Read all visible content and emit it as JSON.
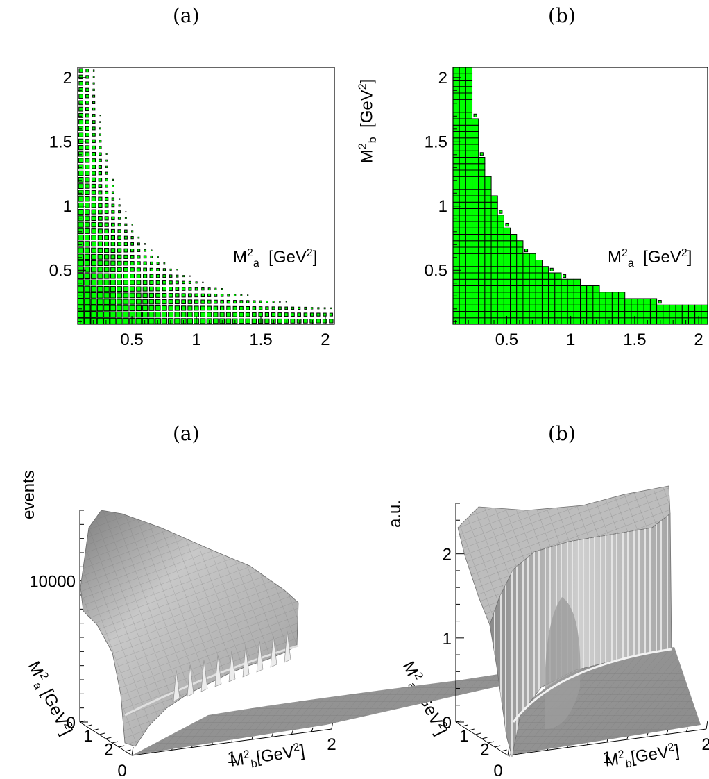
{
  "panels": [
    {
      "label": "(a)"
    },
    {
      "label": "(b)"
    },
    {
      "label": "(a)"
    },
    {
      "label": "(b)"
    }
  ],
  "axes": {
    "ma2": {
      "sym": "M",
      "sup": "2",
      "sub": "a",
      "unit": "[GeV",
      "unit_sup": "2",
      "unit_close": "]"
    },
    "mb2": {
      "sym": "M",
      "sup": "2",
      "sub": "b",
      "unit": "[GeV",
      "unit_sup": "2",
      "unit_close": "]"
    },
    "events": "events",
    "au": "a.u."
  },
  "chart_data": [
    {
      "type": "heatmap",
      "id": "top-left-a",
      "style": "box",
      "color": "#00ff00",
      "edge_color": "#000000",
      "xlabel": "M2a [GeV2]",
      "ylabel": "M2b [GeV2]",
      "xlim": [
        0.08,
        2.07
      ],
      "ylim": [
        0.08,
        2.08
      ],
      "bins": 40,
      "xticks": [
        0.5,
        1,
        1.5,
        2
      ],
      "xtick_labels": [
        "0.5",
        "1",
        "1.5",
        "2"
      ],
      "yticks": [
        0.5,
        1,
        1.5,
        2
      ],
      "ytick_labels": [
        "0.5",
        "1",
        "1.5",
        "2"
      ],
      "kinematic_boundary": "Ma2 * Mb2 <= 0.44",
      "box_size_trend": "largest near the origin, shrinking toward the kinematic boundary"
    },
    {
      "type": "heatmap",
      "id": "top-right-b",
      "style": "box",
      "color": "#00ff00",
      "edge_color": "#000000",
      "xlabel": "M2a [GeV2]",
      "ylabel": "M2b [GeV2]",
      "xlim": [
        0.08,
        2.07
      ],
      "ylim": [
        0.08,
        2.08
      ],
      "bins": 40,
      "xticks": [
        0.5,
        1,
        1.5,
        2
      ],
      "xtick_labels": [
        "0.5",
        "1",
        "1.5",
        "2"
      ],
      "yticks": [
        0.5,
        1,
        1.5,
        2
      ],
      "ytick_labels": [
        "0.5",
        "1",
        "1.5",
        "2"
      ],
      "kinematic_boundary": "Ma2 * Mb2 <= 0.44",
      "box_size_trend": "uniform, full-size boxes inside the boundary"
    },
    {
      "type": "surface",
      "id": "bottom-left-a",
      "zlabel": "events",
      "zticks": [
        0,
        10000
      ],
      "ztick_labels": [
        "0",
        "10000"
      ],
      "zlim": [
        0,
        15000
      ],
      "x_axis_ticks": [
        "0",
        "1",
        "2"
      ],
      "y_axis_ticks": [
        "1",
        "2"
      ]
    },
    {
      "type": "surface",
      "id": "bottom-right-b",
      "zlabel": "a.u.",
      "zticks": [
        0,
        1,
        2
      ],
      "ztick_labels": [
        "0",
        "1",
        "2"
      ],
      "zlim": [
        0,
        2.6
      ],
      "x_axis_ticks": [
        "0",
        "1",
        "2"
      ],
      "y_axis_ticks": [
        "1",
        "2"
      ]
    }
  ]
}
